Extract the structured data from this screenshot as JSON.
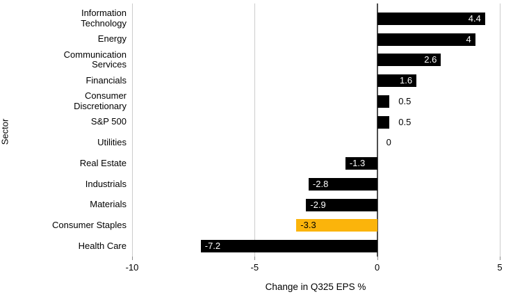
{
  "chart_data": {
    "type": "bar",
    "orientation": "horizontal",
    "xlabel": "Change in Q325 EPS %",
    "ylabel": "Sector",
    "xlim": [
      -10,
      5
    ],
    "x_ticks": [
      -10,
      -5,
      0,
      5
    ],
    "x_tick_labels": [
      "-10",
      "-5",
      "0",
      "5"
    ],
    "grid": "vertical-gridlines-on",
    "legend": "none",
    "categories": [
      "Information\nTechnology",
      "Energy",
      "Communication\nServices",
      "Financials",
      "Consumer\nDiscretionary",
      "S&P 500",
      "Utilities",
      "Real Estate",
      "Industrials",
      "Materials",
      "Consumer Staples",
      "Health Care"
    ],
    "values": [
      4.4,
      4,
      2.6,
      1.6,
      0.5,
      0.5,
      0,
      -1.3,
      -2.8,
      -2.9,
      -3.3,
      -7.2
    ],
    "value_labels": [
      "4.4",
      "4",
      "2.6",
      "1.6",
      "0.5",
      "0.5",
      "0",
      "-1.3",
      "-2.8",
      "-2.9",
      "-3.3",
      "-7.2"
    ],
    "highlight_index": 10,
    "colors": {
      "bar": "#000000",
      "highlight": "#FBB40B",
      "gridline": "#cccccc",
      "zero_line": "#4d4d4d",
      "value_inside": "#ffffff",
      "value_on_highlight": "#000000",
      "value_outside": "#000000",
      "text": "#000000",
      "background": "#ffffff"
    }
  }
}
